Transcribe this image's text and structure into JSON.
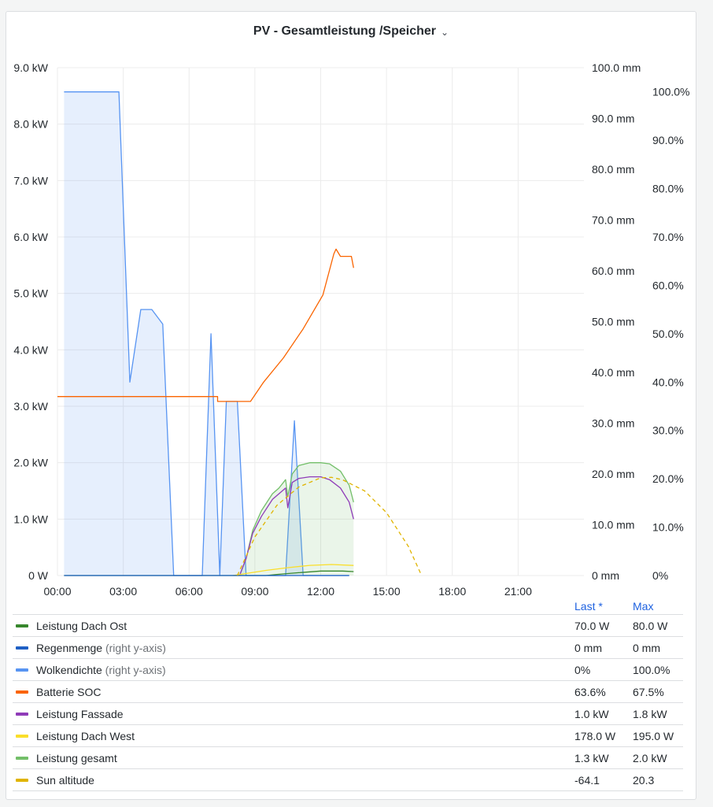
{
  "panel": {
    "title": "PV - Gesamtleistung /Speicher",
    "menu_icon": "chevron-down-icon"
  },
  "legend": {
    "header_last": "Last *",
    "header_max": "Max",
    "rows": [
      {
        "name": "Leistung Dach Ost",
        "suffix": "",
        "color": "#37872d",
        "last": "70.0 W",
        "max": "80.0 W"
      },
      {
        "name": "Regenmenge",
        "suffix": " (right y-axis)",
        "color": "#1f60c4",
        "last": "0 mm",
        "max": "0 mm"
      },
      {
        "name": "Wolkendichte",
        "suffix": " (right y-axis)",
        "color": "#5794f2",
        "last": "0%",
        "max": "100.0%"
      },
      {
        "name": "Batterie SOC",
        "suffix": "",
        "color": "#fa6400",
        "last": "63.6%",
        "max": "67.5%"
      },
      {
        "name": "Leistung Fassade",
        "suffix": "",
        "color": "#8f3bb8",
        "last": "1.0 kW",
        "max": "1.8 kW"
      },
      {
        "name": "Leistung Dach West",
        "suffix": "",
        "color": "#fade2a",
        "last": "178.0 W",
        "max": "195.0 W"
      },
      {
        "name": "Leistung gesamt",
        "suffix": "",
        "color": "#73bf69",
        "last": "1.3 kW",
        "max": "2.0 kW"
      },
      {
        "name": "Sun altitude",
        "suffix": "",
        "color": "#e0b400",
        "last": "-64.1",
        "max": "20.3"
      }
    ]
  },
  "chart_data": {
    "type": "line",
    "x_unit": "hour of day",
    "x_ticks": [
      "00:00",
      "03:00",
      "06:00",
      "09:00",
      "12:00",
      "15:00",
      "18:00",
      "21:00"
    ],
    "xlim": [
      0,
      24
    ],
    "y_left": {
      "ticks": [
        "0 W",
        "1.0 kW",
        "2.0 kW",
        "3.0 kW",
        "4.0 kW",
        "5.0 kW",
        "6.0 kW",
        "7.0 kW",
        "8.0 kW",
        "9.0 kW"
      ],
      "ylim": [
        0,
        9
      ]
    },
    "y_right_mm": {
      "ticks": [
        "0 mm",
        "10.0 mm",
        "20.0 mm",
        "30.0 mm",
        "40.0 mm",
        "50.0 mm",
        "60.0 mm",
        "70.0 mm",
        "80.0 mm",
        "90.0 mm",
        "100.0 mm"
      ],
      "ylim": [
        0,
        100
      ]
    },
    "y_right_pct": {
      "ticks": [
        "0%",
        "10.0%",
        "20.0%",
        "30.0%",
        "40.0%",
        "50.0%",
        "60.0%",
        "70.0%",
        "80.0%",
        "90.0%",
        "100.0%"
      ],
      "ylim": [
        0,
        105
      ]
    },
    "grid": true,
    "series": [
      {
        "name": "Wolkendichte",
        "axis": "pct",
        "color": "#5794f2",
        "fill": true,
        "points": [
          [
            0.3,
            100
          ],
          [
            2.8,
            100
          ],
          [
            3.3,
            40
          ],
          [
            3.8,
            55
          ],
          [
            4.3,
            55
          ],
          [
            4.8,
            52
          ],
          [
            5.3,
            0
          ],
          [
            6.3,
            0
          ],
          [
            6.6,
            0
          ],
          [
            7.0,
            50
          ],
          [
            7.4,
            0
          ],
          [
            7.7,
            36
          ],
          [
            8.2,
            36
          ],
          [
            8.6,
            0
          ],
          [
            10.4,
            0
          ],
          [
            10.8,
            32
          ],
          [
            11.2,
            0
          ],
          [
            13.3,
            0
          ]
        ]
      },
      {
        "name": "Batterie SOC",
        "axis": "pct",
        "color": "#fa6400",
        "fill": false,
        "points": [
          [
            0,
            37
          ],
          [
            7.3,
            37
          ],
          [
            7.3,
            36
          ],
          [
            8.8,
            36
          ],
          [
            9.4,
            40
          ],
          [
            10.3,
            45
          ],
          [
            11.2,
            51
          ],
          [
            12.1,
            58
          ],
          [
            12.6,
            66.5
          ],
          [
            12.7,
            67.5
          ],
          [
            12.9,
            66
          ],
          [
            13.4,
            66
          ],
          [
            13.5,
            63.6
          ]
        ]
      },
      {
        "name": "Leistung gesamt",
        "axis": "kw",
        "color": "#73bf69",
        "fill": true,
        "points": [
          [
            8.3,
            0
          ],
          [
            8.6,
            0.3
          ],
          [
            8.9,
            0.8
          ],
          [
            9.3,
            1.15
          ],
          [
            9.8,
            1.45
          ],
          [
            10.1,
            1.55
          ],
          [
            10.4,
            1.7
          ],
          [
            10.5,
            1.4
          ],
          [
            10.7,
            1.8
          ],
          [
            11.0,
            1.95
          ],
          [
            11.5,
            2.0
          ],
          [
            12.0,
            2.0
          ],
          [
            12.4,
            1.98
          ],
          [
            12.9,
            1.85
          ],
          [
            13.3,
            1.6
          ],
          [
            13.5,
            1.3
          ]
        ]
      },
      {
        "name": "Leistung Fassade",
        "axis": "kw",
        "color": "#8f3bb8",
        "fill": false,
        "points": [
          [
            8.3,
            0
          ],
          [
            8.6,
            0.3
          ],
          [
            8.9,
            0.75
          ],
          [
            9.3,
            1.05
          ],
          [
            9.8,
            1.35
          ],
          [
            10.1,
            1.45
          ],
          [
            10.4,
            1.55
          ],
          [
            10.5,
            1.2
          ],
          [
            10.7,
            1.65
          ],
          [
            11.0,
            1.72
          ],
          [
            11.5,
            1.75
          ],
          [
            12.0,
            1.75
          ],
          [
            12.4,
            1.7
          ],
          [
            12.9,
            1.55
          ],
          [
            13.3,
            1.3
          ],
          [
            13.5,
            1.0
          ]
        ]
      },
      {
        "name": "Leistung Dach West",
        "axis": "kw",
        "color": "#fade2a",
        "fill": false,
        "points": [
          [
            8.0,
            0
          ],
          [
            8.5,
            0.03
          ],
          [
            9.5,
            0.09
          ],
          [
            10.5,
            0.14
          ],
          [
            11.5,
            0.18
          ],
          [
            12.5,
            0.195
          ],
          [
            13.5,
            0.178
          ]
        ]
      },
      {
        "name": "Leistung Dach Ost",
        "axis": "kw",
        "color": "#37872d",
        "fill": false,
        "points": [
          [
            0.3,
            0
          ],
          [
            9.5,
            0
          ],
          [
            10.0,
            0.02
          ],
          [
            11.0,
            0.05
          ],
          [
            12.0,
            0.08
          ],
          [
            13.0,
            0.08
          ],
          [
            13.5,
            0.07
          ]
        ]
      },
      {
        "name": "Regenmenge",
        "axis": "mm",
        "color": "#1f60c4",
        "fill": false,
        "points": [
          [
            0.3,
            0
          ],
          [
            13.3,
            0
          ]
        ]
      },
      {
        "name": "Sun altitude",
        "axis": "pct",
        "color": "#e0b400",
        "fill": false,
        "dashed": true,
        "points": [
          [
            8.2,
            0
          ],
          [
            9.0,
            8
          ],
          [
            10.0,
            14.5
          ],
          [
            11.0,
            18.3
          ],
          [
            12.0,
            20.2
          ],
          [
            12.5,
            20.3
          ],
          [
            13.0,
            19.8
          ],
          [
            14.0,
            17.5
          ],
          [
            15.0,
            13
          ],
          [
            16.0,
            6
          ],
          [
            16.6,
            0
          ]
        ]
      }
    ]
  }
}
